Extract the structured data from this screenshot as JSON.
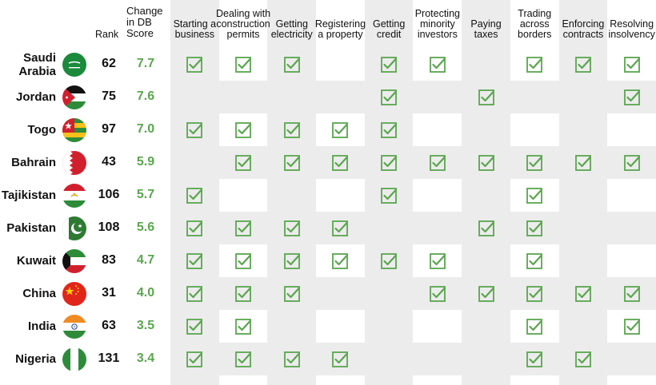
{
  "header": {
    "rank_label": "Rank",
    "change_label": "Change\nin DB\nScore",
    "indicators": [
      "Starting a\nbusiness",
      "Dealing with\nconstruction\npermits",
      "Getting\nelectricity",
      "Registering\na property",
      "Getting\ncredit",
      "Protecting\nminority\ninvestors",
      "Paying\ntaxes",
      "Trading\nacross\nborders",
      "Enforcing\ncontracts",
      "Resolving\ninsolvency"
    ]
  },
  "colors": {
    "green": "#5aa64e",
    "shade": "#ececec"
  },
  "chart_data": {
    "type": "table",
    "columns": [
      "Rank",
      "Change in DB Score",
      "Starting a business",
      "Dealing with construction permits",
      "Getting electricity",
      "Registering a property",
      "Getting credit",
      "Protecting minority investors",
      "Paying taxes",
      "Trading across borders",
      "Enforcing contracts",
      "Resolving insolvency"
    ],
    "rows": [
      {
        "country": "Saudi\nArabia",
        "flag": "saudi-arabia",
        "rank": "62",
        "change": "7.7",
        "checks": [
          1,
          1,
          1,
          0,
          1,
          1,
          0,
          1,
          1,
          1
        ]
      },
      {
        "country": "Jordan",
        "flag": "jordan",
        "rank": "75",
        "change": "7.6",
        "checks": [
          0,
          0,
          0,
          0,
          1,
          0,
          1,
          0,
          0,
          1
        ]
      },
      {
        "country": "Togo",
        "flag": "togo",
        "rank": "97",
        "change": "7.0",
        "checks": [
          1,
          1,
          1,
          1,
          1,
          0,
          0,
          0,
          0,
          0
        ]
      },
      {
        "country": "Bahrain",
        "flag": "bahrain",
        "rank": "43",
        "change": "5.9",
        "checks": [
          0,
          1,
          1,
          1,
          1,
          1,
          1,
          1,
          1,
          1
        ]
      },
      {
        "country": "Tajikistan",
        "flag": "tajikistan",
        "rank": "106",
        "change": "5.7",
        "checks": [
          1,
          0,
          0,
          0,
          1,
          0,
          0,
          1,
          0,
          0
        ]
      },
      {
        "country": "Pakistan",
        "flag": "pakistan",
        "rank": "108",
        "change": "5.6",
        "checks": [
          1,
          1,
          1,
          1,
          0,
          0,
          1,
          1,
          0,
          0
        ]
      },
      {
        "country": "Kuwait",
        "flag": "kuwait",
        "rank": "83",
        "change": "4.7",
        "checks": [
          1,
          1,
          1,
          1,
          1,
          1,
          0,
          1,
          0,
          0
        ]
      },
      {
        "country": "China",
        "flag": "china",
        "rank": "31",
        "change": "4.0",
        "checks": [
          1,
          1,
          1,
          0,
          0,
          1,
          1,
          1,
          1,
          1
        ]
      },
      {
        "country": "India",
        "flag": "india",
        "rank": "63",
        "change": "3.5",
        "checks": [
          1,
          1,
          0,
          0,
          0,
          0,
          0,
          1,
          0,
          1
        ]
      },
      {
        "country": "Nigeria",
        "flag": "nigeria",
        "rank": "131",
        "change": "3.4",
        "checks": [
          1,
          1,
          1,
          1,
          0,
          0,
          0,
          1,
          1,
          0
        ]
      }
    ]
  }
}
